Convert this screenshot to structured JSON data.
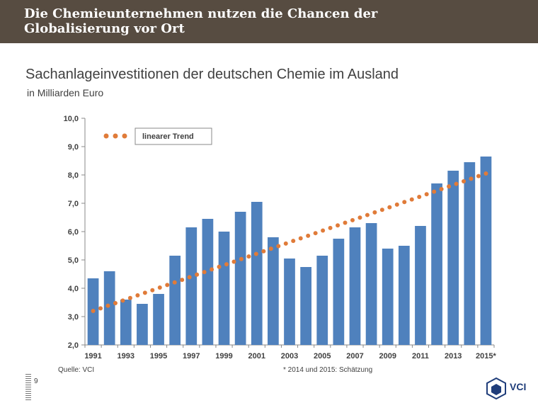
{
  "header": {
    "title": "Die Chemieunternehmen nutzen die Chancen der\nGlobalisierung vor Ort"
  },
  "colors": {
    "header_bg": "#574c41",
    "bar": "#4f81bd",
    "trend": "#e07b39",
    "text": "#404040"
  },
  "footer": {
    "source": "Quelle: VCI",
    "footnote": "* 2014 und 2015: Schätzung",
    "page_number": "9",
    "logo_text": "VCI"
  },
  "chart_data": {
    "type": "bar",
    "title": "Sachanlageinvestitionen der deutschen Chemie im Ausland",
    "subtitle": "in Milliarden Euro",
    "xlabel": "",
    "ylabel": "",
    "ylim": [
      2.0,
      10.0
    ],
    "yticks": [
      "2,0",
      "3,0",
      "4,0",
      "5,0",
      "6,0",
      "7,0",
      "8,0",
      "9,0",
      "10,0"
    ],
    "categories": [
      "1991",
      "1992",
      "1993",
      "1994",
      "1995",
      "1996",
      "1997",
      "1998",
      "1999",
      "2000",
      "2001",
      "2002",
      "2003",
      "2004",
      "2005",
      "2006",
      "2007",
      "2008",
      "2009",
      "2010",
      "2011",
      "2012",
      "2013",
      "2014",
      "2015*"
    ],
    "xtick_labels": [
      "1991",
      "1993",
      "1995",
      "1997",
      "1999",
      "2001",
      "2003",
      "2005",
      "2007",
      "2009",
      "2011",
      "2013",
      "2015*"
    ],
    "series": [
      {
        "values": [
          4.35,
          4.6,
          3.6,
          3.45,
          3.8,
          5.15,
          6.15,
          6.45,
          6.0,
          6.7,
          7.05,
          5.8,
          5.05,
          4.75,
          5.15,
          5.75,
          6.15,
          6.3,
          5.4,
          5.5,
          6.2,
          7.7,
          8.15,
          8.45,
          8.65
        ]
      }
    ],
    "trend": {
      "label": "linearer Trend",
      "start": 3.2,
      "end": 8.05
    },
    "legend": "top-left",
    "grid": false
  }
}
